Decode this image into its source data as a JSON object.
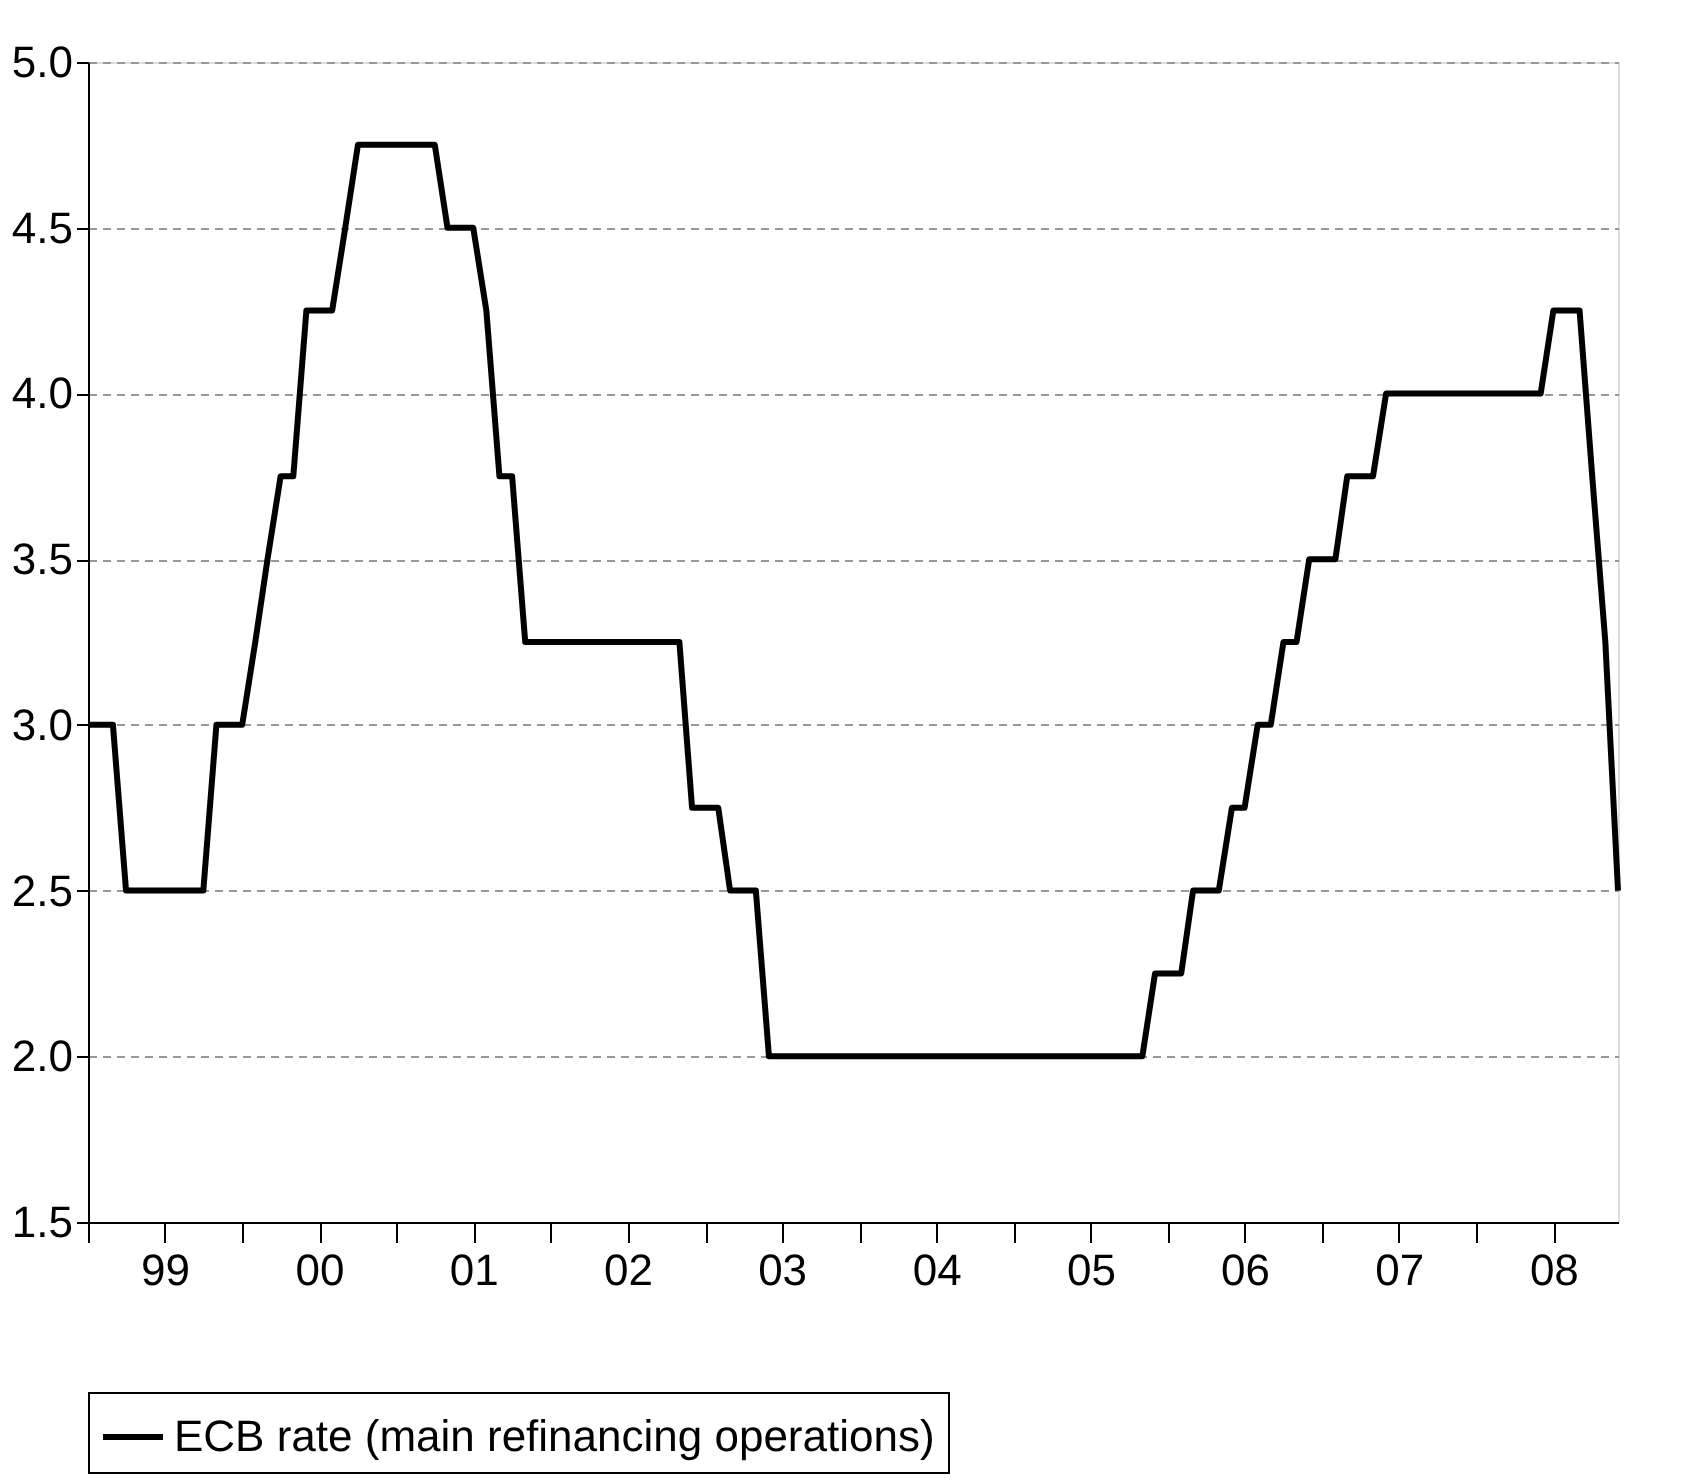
{
  "chart_data": {
    "type": "line",
    "x": [
      "1999-01",
      "1999-02",
      "1999-03",
      "1999-04",
      "1999-05",
      "1999-06",
      "1999-07",
      "1999-08",
      "1999-09",
      "1999-10",
      "1999-11",
      "1999-12",
      "2000-01",
      "2000-02",
      "2000-03",
      "2000-04",
      "2000-05",
      "2000-06",
      "2000-07",
      "2000-08",
      "2000-09",
      "2000-10",
      "2000-11",
      "2000-12",
      "2001-01",
      "2001-02",
      "2001-03",
      "2001-04",
      "2001-05",
      "2001-06",
      "2001-07",
      "2001-08",
      "2001-09",
      "2001-10",
      "2001-11",
      "2001-12",
      "2002-01",
      "2002-02",
      "2002-03",
      "2002-04",
      "2002-05",
      "2002-06",
      "2002-07",
      "2002-08",
      "2002-09",
      "2002-10",
      "2002-11",
      "2002-12",
      "2003-01",
      "2003-02",
      "2003-03",
      "2003-04",
      "2003-05",
      "2003-06",
      "2003-07",
      "2003-08",
      "2003-09",
      "2003-10",
      "2003-11",
      "2003-12",
      "2004-01",
      "2004-02",
      "2004-03",
      "2004-04",
      "2004-05",
      "2004-06",
      "2004-07",
      "2004-08",
      "2004-09",
      "2004-10",
      "2004-11",
      "2004-12",
      "2005-01",
      "2005-02",
      "2005-03",
      "2005-04",
      "2005-05",
      "2005-06",
      "2005-07",
      "2005-08",
      "2005-09",
      "2005-10",
      "2005-11",
      "2005-12",
      "2006-01",
      "2006-02",
      "2006-03",
      "2006-04",
      "2006-05",
      "2006-06",
      "2006-07",
      "2006-08",
      "2006-09",
      "2006-10",
      "2006-11",
      "2006-12",
      "2007-01",
      "2007-02",
      "2007-03",
      "2007-04",
      "2007-05",
      "2007-06",
      "2007-07",
      "2007-08",
      "2007-09",
      "2007-10",
      "2007-11",
      "2007-12",
      "2008-01",
      "2008-02",
      "2008-03",
      "2008-04",
      "2008-05",
      "2008-06",
      "2008-07",
      "2008-08",
      "2008-09",
      "2008-10",
      "2008-11",
      "2008-12"
    ],
    "series": [
      {
        "name": "ECB rate (main refinancing operations)",
        "color": "#000000",
        "values": [
          3.0,
          3.0,
          3.0,
          2.5,
          2.5,
          2.5,
          2.5,
          2.5,
          2.5,
          2.5,
          3.0,
          3.0,
          3.0,
          3.25,
          3.5,
          3.75,
          3.75,
          4.25,
          4.25,
          4.25,
          4.5,
          4.75,
          4.75,
          4.75,
          4.75,
          4.75,
          4.75,
          4.75,
          4.5,
          4.5,
          4.5,
          4.25,
          3.75,
          3.75,
          3.25,
          3.25,
          3.25,
          3.25,
          3.25,
          3.25,
          3.25,
          3.25,
          3.25,
          3.25,
          3.25,
          3.25,
          3.25,
          2.75,
          2.75,
          2.75,
          2.5,
          2.5,
          2.5,
          2.0,
          2.0,
          2.0,
          2.0,
          2.0,
          2.0,
          2.0,
          2.0,
          2.0,
          2.0,
          2.0,
          2.0,
          2.0,
          2.0,
          2.0,
          2.0,
          2.0,
          2.0,
          2.0,
          2.0,
          2.0,
          2.0,
          2.0,
          2.0,
          2.0,
          2.0,
          2.0,
          2.0,
          2.0,
          2.0,
          2.25,
          2.25,
          2.25,
          2.5,
          2.5,
          2.5,
          2.75,
          2.75,
          3.0,
          3.0,
          3.25,
          3.25,
          3.5,
          3.5,
          3.5,
          3.75,
          3.75,
          3.75,
          4.0,
          4.0,
          4.0,
          4.0,
          4.0,
          4.0,
          4.0,
          4.0,
          4.0,
          4.0,
          4.0,
          4.0,
          4.0,
          4.25,
          4.25,
          4.25,
          3.75,
          3.25,
          2.5
        ]
      }
    ],
    "xlim": [
      "1999-01",
      "2008-12"
    ],
    "xticks": [
      {
        "value": "1999-01",
        "label": null
      },
      {
        "value": "1999-07",
        "label": "99"
      },
      {
        "value": "2000-01",
        "label": null
      },
      {
        "value": "2000-07",
        "label": "00"
      },
      {
        "value": "2001-01",
        "label": null
      },
      {
        "value": "2001-07",
        "label": "01"
      },
      {
        "value": "2002-01",
        "label": null
      },
      {
        "value": "2002-07",
        "label": "02"
      },
      {
        "value": "2003-01",
        "label": null
      },
      {
        "value": "2003-07",
        "label": "03"
      },
      {
        "value": "2004-01",
        "label": null
      },
      {
        "value": "2004-07",
        "label": "04"
      },
      {
        "value": "2005-01",
        "label": null
      },
      {
        "value": "2005-07",
        "label": "05"
      },
      {
        "value": "2006-01",
        "label": null
      },
      {
        "value": "2006-07",
        "label": "06"
      },
      {
        "value": "2007-01",
        "label": null
      },
      {
        "value": "2007-07",
        "label": "07"
      },
      {
        "value": "2008-01",
        "label": null
      },
      {
        "value": "2008-07",
        "label": "08"
      }
    ],
    "ylim": [
      1.5,
      5.0
    ],
    "yticks": [
      {
        "value": 1.5,
        "label": "1.5"
      },
      {
        "value": 2.0,
        "label": "2.0"
      },
      {
        "value": 2.5,
        "label": "2.5"
      },
      {
        "value": 3.0,
        "label": "3.0"
      },
      {
        "value": 3.5,
        "label": "3.5"
      },
      {
        "value": 4.0,
        "label": "4.0"
      },
      {
        "value": 4.5,
        "label": "4.5"
      },
      {
        "value": 5.0,
        "label": "5.0"
      }
    ],
    "grid": "y",
    "legend": "bottom",
    "line_style": "solid"
  }
}
